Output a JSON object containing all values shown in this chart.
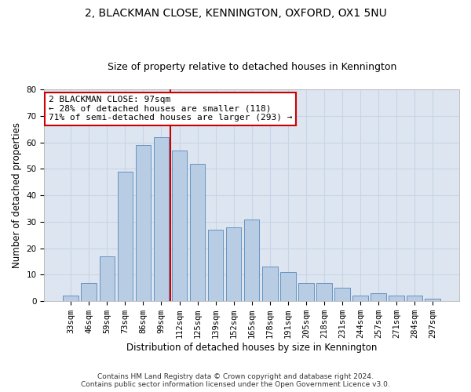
{
  "title1": "2, BLACKMAN CLOSE, KENNINGTON, OXFORD, OX1 5NU",
  "title2": "Size of property relative to detached houses in Kennington",
  "xlabel": "Distribution of detached houses by size in Kennington",
  "ylabel": "Number of detached properties",
  "categories": [
    "33sqm",
    "46sqm",
    "59sqm",
    "73sqm",
    "86sqm",
    "99sqm",
    "112sqm",
    "125sqm",
    "139sqm",
    "152sqm",
    "165sqm",
    "178sqm",
    "191sqm",
    "205sqm",
    "218sqm",
    "231sqm",
    "244sqm",
    "257sqm",
    "271sqm",
    "284sqm",
    "297sqm"
  ],
  "values": [
    2,
    7,
    17,
    49,
    59,
    62,
    57,
    52,
    27,
    28,
    31,
    13,
    11,
    7,
    7,
    5,
    2,
    3,
    2,
    2,
    1
  ],
  "bar_color": "#b8cce4",
  "bar_edge_color": "#5588bb",
  "grid_color": "#c8d4e8",
  "background_color": "#dde5f0",
  "vline_color": "#cc0000",
  "vline_x": 5.5,
  "annotation_text": "2 BLACKMAN CLOSE: 97sqm\n← 28% of detached houses are smaller (118)\n71% of semi-detached houses are larger (293) →",
  "annotation_box_color": "white",
  "annotation_box_edge_color": "#cc0000",
  "ylim": [
    0,
    80
  ],
  "yticks": [
    0,
    10,
    20,
    30,
    40,
    50,
    60,
    70,
    80
  ],
  "footer1": "Contains HM Land Registry data © Crown copyright and database right 2024.",
  "footer2": "Contains public sector information licensed under the Open Government Licence v3.0.",
  "title1_fontsize": 10,
  "title2_fontsize": 9,
  "xlabel_fontsize": 8.5,
  "ylabel_fontsize": 8.5,
  "tick_fontsize": 7.5,
  "annotation_fontsize": 8,
  "footer_fontsize": 6.5
}
